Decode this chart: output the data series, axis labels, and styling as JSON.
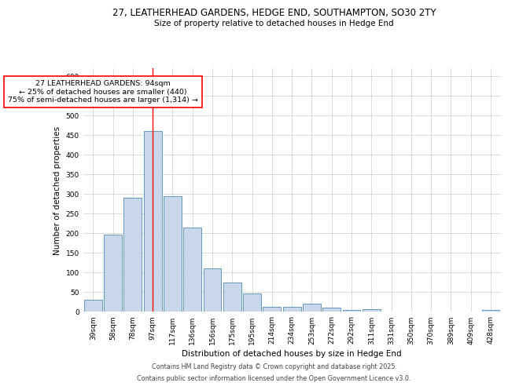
{
  "title_line1": "27, LEATHERHEAD GARDENS, HEDGE END, SOUTHAMPTON, SO30 2TY",
  "title_line2": "Size of property relative to detached houses in Hedge End",
  "xlabel": "Distribution of detached houses by size in Hedge End",
  "ylabel": "Number of detached properties",
  "bar_labels": [
    "39sqm",
    "58sqm",
    "78sqm",
    "97sqm",
    "117sqm",
    "136sqm",
    "156sqm",
    "175sqm",
    "195sqm",
    "214sqm",
    "234sqm",
    "253sqm",
    "272sqm",
    "292sqm",
    "311sqm",
    "331sqm",
    "350sqm",
    "370sqm",
    "389sqm",
    "409sqm",
    "428sqm"
  ],
  "bar_values": [
    30,
    197,
    290,
    460,
    293,
    215,
    110,
    75,
    47,
    13,
    12,
    20,
    10,
    5,
    7,
    0,
    0,
    0,
    0,
    0,
    5
  ],
  "bar_color": "#c8d8ea",
  "bar_edge_color": "#6699bb",
  "red_line_index": 3,
  "annotation_box_text": "27 LEATHERHEAD GARDENS: 94sqm\n← 25% of detached houses are smaller (440)\n75% of semi-detached houses are larger (1,314) →",
  "annotation_box_color": "white",
  "annotation_box_edge_color": "red",
  "ylim": [
    0,
    620
  ],
  "yticks": [
    0,
    50,
    100,
    150,
    200,
    250,
    300,
    350,
    400,
    450,
    500,
    550,
    600
  ],
  "grid_color": "#cccccc",
  "background_color": "white",
  "footer_line1": "Contains HM Land Registry data © Crown copyright and database right 2025.",
  "footer_line2": "Contains public sector information licensed under the Open Government Licence v3.0.",
  "bar_width": 0.9,
  "title_fontsize": 8.5,
  "subtitle_fontsize": 7.5,
  "axis_label_fontsize": 7.5,
  "tick_fontsize": 6.5,
  "annotation_fontsize": 6.8,
  "footer_fontsize": 5.8
}
